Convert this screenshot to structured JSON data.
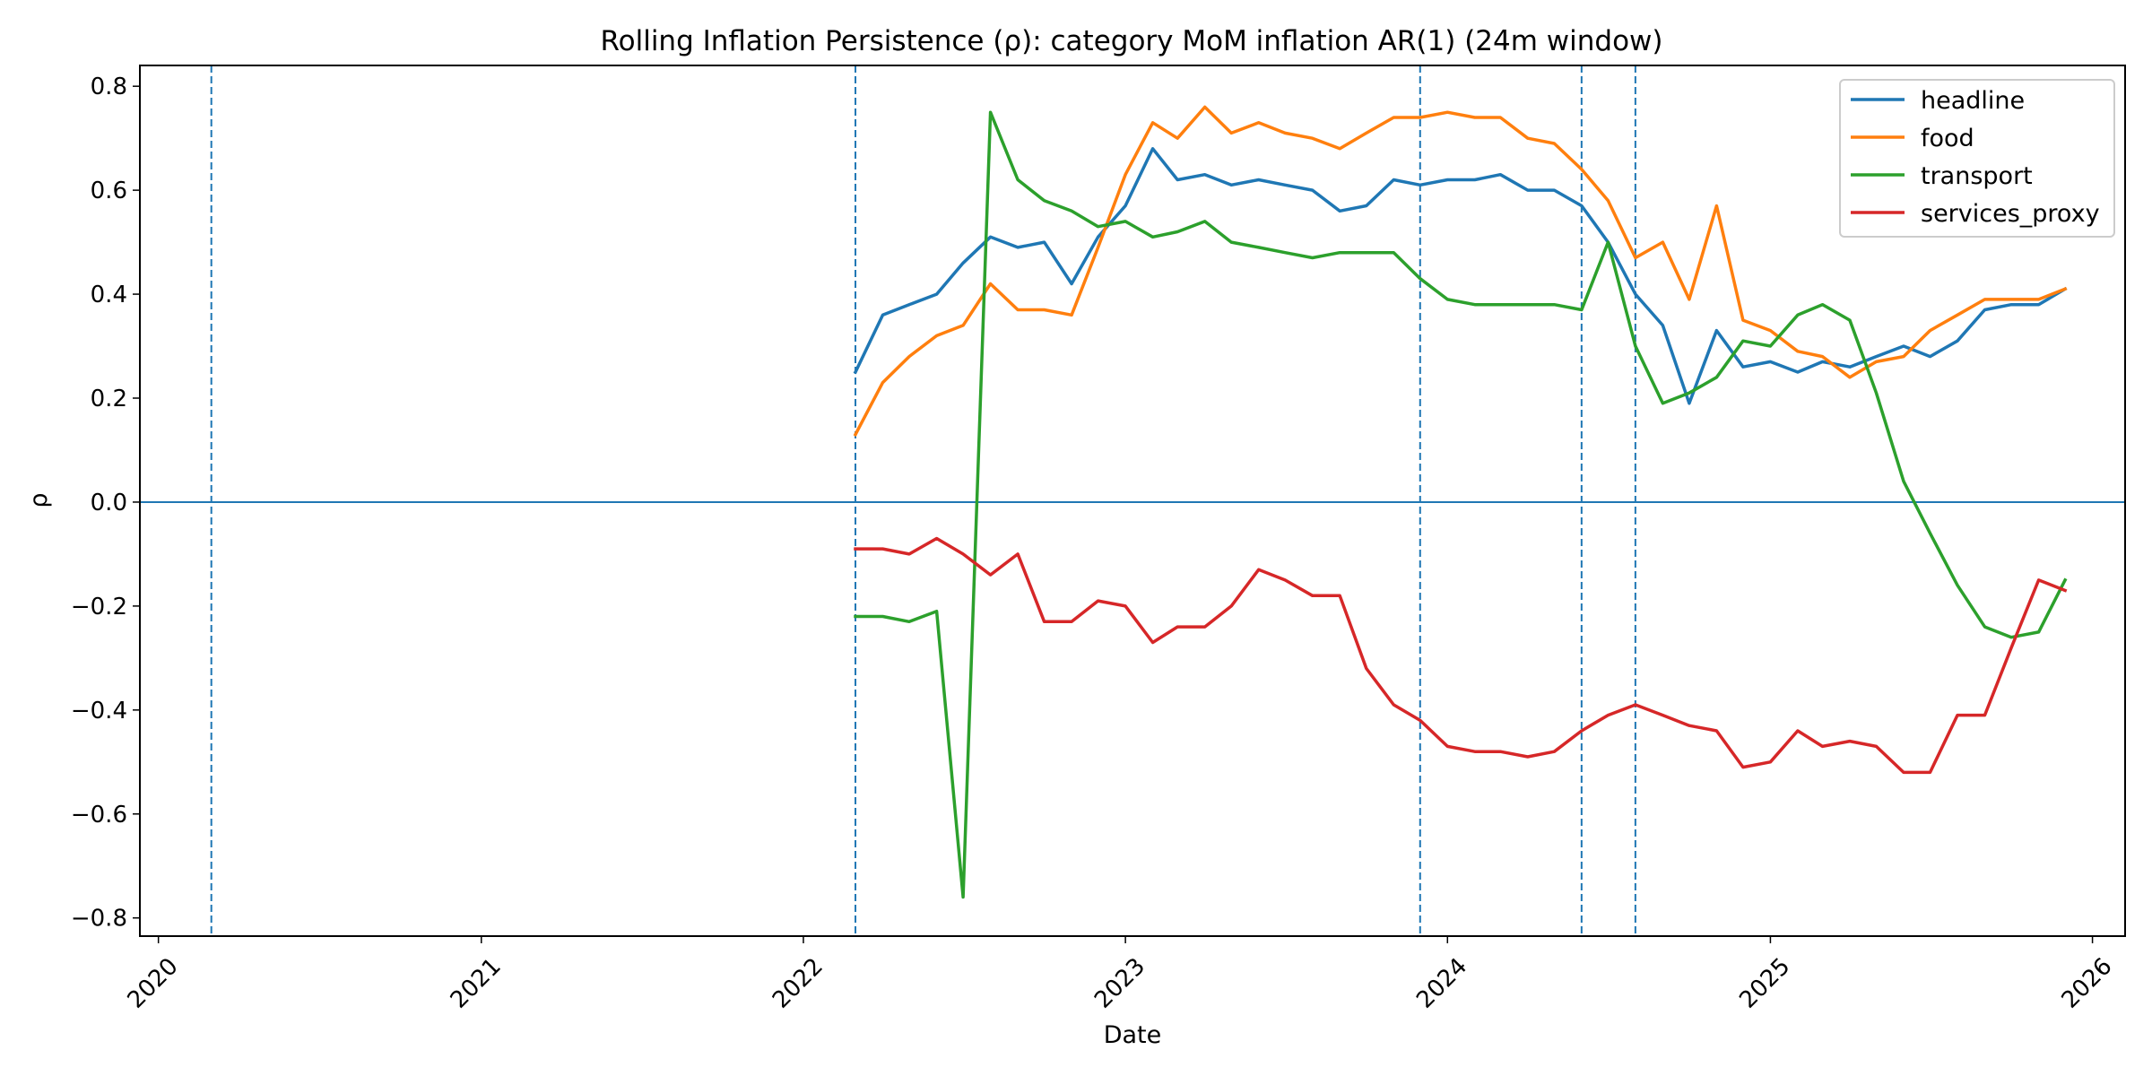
{
  "chart_data": {
    "type": "line",
    "title": "Rolling Inflation Persistence (ρ): category MoM inflation AR(1) (24m window)",
    "xlabel": "Date",
    "ylabel": "ρ",
    "xlim": [
      "2019-12-11",
      "2026-02-07"
    ],
    "ylim": [
      -0.835,
      0.84
    ],
    "x_ticks": [
      "2020-01-01",
      "2021-01-01",
      "2022-01-01",
      "2023-01-01",
      "2024-01-01",
      "2025-01-01",
      "2026-01-01"
    ],
    "x_tick_labels": [
      "2020",
      "2021",
      "2022",
      "2023",
      "2024",
      "2025",
      "2026"
    ],
    "y_ticks": [
      -0.8,
      -0.6,
      -0.4,
      -0.2,
      0.0,
      0.2,
      0.4,
      0.6,
      0.8
    ],
    "y_tick_labels": [
      "−0.8",
      "−0.6",
      "−0.4",
      "−0.2",
      "0.0",
      "0.2",
      "0.4",
      "0.6",
      "0.8"
    ],
    "grid": false,
    "legend_position": "top-right",
    "hline": {
      "y": 0.0,
      "style": "solid",
      "color": "#1f77b4"
    },
    "vlines": {
      "style": "dashed",
      "color": "#1f77b4",
      "x": [
        "2020-03-01",
        "2022-03-01",
        "2023-12-01",
        "2024-06-01",
        "2024-08-01"
      ]
    },
    "x": [
      "2022-03-01",
      "2022-04-01",
      "2022-05-01",
      "2022-06-01",
      "2022-07-01",
      "2022-08-01",
      "2022-09-01",
      "2022-10-01",
      "2022-11-01",
      "2022-12-01",
      "2023-01-01",
      "2023-02-01",
      "2023-03-01",
      "2023-04-01",
      "2023-05-01",
      "2023-06-01",
      "2023-07-01",
      "2023-08-01",
      "2023-09-01",
      "2023-10-01",
      "2023-11-01",
      "2023-12-01",
      "2024-01-01",
      "2024-02-01",
      "2024-03-01",
      "2024-04-01",
      "2024-05-01",
      "2024-06-01",
      "2024-07-01",
      "2024-08-01",
      "2024-09-01",
      "2024-10-01",
      "2024-11-01",
      "2024-12-01",
      "2025-01-01",
      "2025-02-01",
      "2025-03-01",
      "2025-04-01",
      "2025-05-01",
      "2025-06-01",
      "2025-07-01",
      "2025-08-01",
      "2025-09-01",
      "2025-10-01",
      "2025-11-01",
      "2025-12-01"
    ],
    "series": [
      {
        "name": "headline",
        "color": "#1f77b4",
        "values": [
          0.25,
          0.36,
          0.38,
          0.4,
          0.46,
          0.51,
          0.49,
          0.5,
          0.42,
          0.51,
          0.57,
          0.68,
          0.62,
          0.63,
          0.61,
          0.62,
          0.61,
          0.6,
          0.56,
          0.57,
          0.62,
          0.61,
          0.62,
          0.62,
          0.63,
          0.6,
          0.6,
          0.57,
          0.5,
          0.4,
          0.34,
          0.19,
          0.33,
          0.26,
          0.27,
          0.25,
          0.27,
          0.26,
          0.28,
          0.3,
          0.28,
          0.31,
          0.37,
          0.38,
          0.38,
          0.41
        ]
      },
      {
        "name": "food",
        "color": "#ff7f0e",
        "values": [
          0.13,
          0.23,
          0.28,
          0.32,
          0.34,
          0.42,
          0.37,
          0.37,
          0.36,
          0.49,
          0.63,
          0.73,
          0.7,
          0.76,
          0.71,
          0.73,
          0.71,
          0.7,
          0.68,
          0.71,
          0.74,
          0.74,
          0.75,
          0.74,
          0.74,
          0.7,
          0.69,
          0.64,
          0.58,
          0.47,
          0.5,
          0.39,
          0.57,
          0.35,
          0.33,
          0.29,
          0.28,
          0.24,
          0.27,
          0.28,
          0.33,
          0.36,
          0.39,
          0.39,
          0.39,
          0.41
        ]
      },
      {
        "name": "transport",
        "color": "#2ca02c",
        "values": [
          -0.22,
          -0.22,
          -0.23,
          -0.21,
          -0.76,
          0.75,
          0.62,
          0.58,
          0.56,
          0.53,
          0.54,
          0.51,
          0.52,
          0.54,
          0.5,
          0.49,
          0.48,
          0.47,
          0.48,
          0.48,
          0.48,
          0.43,
          0.39,
          0.38,
          0.38,
          0.38,
          0.38,
          0.37,
          0.5,
          0.3,
          0.19,
          0.21,
          0.24,
          0.31,
          0.3,
          0.36,
          0.38,
          0.35,
          0.21,
          0.04,
          -0.06,
          -0.16,
          -0.24,
          -0.26,
          -0.25,
          -0.15
        ]
      },
      {
        "name": "services_proxy",
        "color": "#d62728",
        "values": [
          -0.09,
          -0.09,
          -0.1,
          -0.07,
          -0.1,
          -0.14,
          -0.1,
          -0.23,
          -0.23,
          -0.19,
          -0.2,
          -0.27,
          -0.24,
          -0.24,
          -0.2,
          -0.13,
          -0.15,
          -0.18,
          -0.18,
          -0.32,
          -0.39,
          -0.42,
          -0.47,
          -0.48,
          -0.48,
          -0.49,
          -0.48,
          -0.44,
          -0.41,
          -0.39,
          -0.41,
          -0.43,
          -0.44,
          -0.51,
          -0.5,
          -0.44,
          -0.47,
          -0.46,
          -0.47,
          -0.52,
          -0.52,
          -0.41,
          -0.41,
          -0.28,
          -0.15,
          -0.17
        ]
      }
    ]
  }
}
